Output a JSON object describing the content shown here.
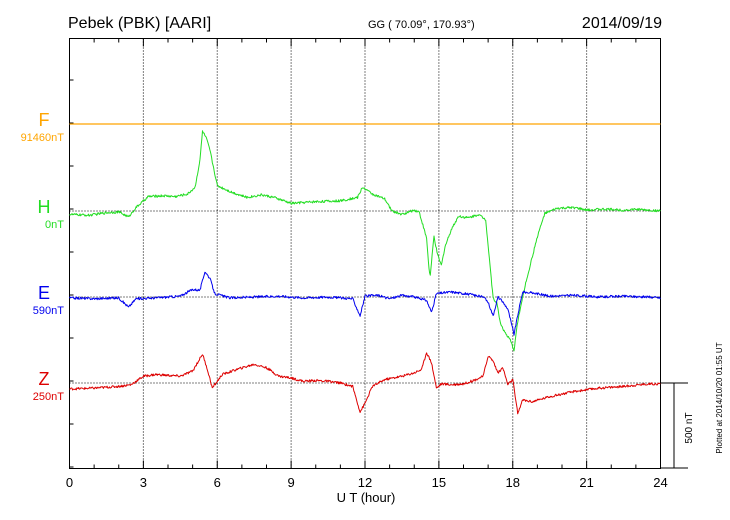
{
  "header": {
    "station": "Pebek (PBK)  [AARI]",
    "coords": "GG ( 70.09°, 170.93°)",
    "date": "2014/09/19"
  },
  "footer": {
    "plotted": "Plotted at 2014/10/20 01:55 UT",
    "scale_label": "500 nT"
  },
  "chart_data": {
    "type": "line",
    "title": "Pebek (PBK)  [AARI]  2014/09/19",
    "xlabel": "U T (hour)",
    "ylabel": "",
    "xlim": [
      0,
      24
    ],
    "xticks": [
      0,
      3,
      6,
      9,
      12,
      15,
      18,
      21,
      24
    ],
    "xtick_labels": [
      "0",
      "3",
      "6",
      "9",
      "12",
      "15",
      "18",
      "21",
      "24"
    ],
    "scale_bar_nT": 500,
    "series": [
      {
        "name": "F",
        "baseline_label": "91460nT",
        "color": "#ffa500",
        "unit": "nT",
        "points": [
          [
            0,
            0
          ],
          [
            24,
            0
          ]
        ]
      },
      {
        "name": "H",
        "baseline_label": "0nT",
        "color": "#22dd22",
        "unit": "nT",
        "points": [
          [
            0,
            -20
          ],
          [
            0.8,
            -25
          ],
          [
            1.5,
            -10
          ],
          [
            2.0,
            -5
          ],
          [
            2.4,
            -35
          ],
          [
            2.7,
            20
          ],
          [
            3.2,
            85
          ],
          [
            3.8,
            90
          ],
          [
            4.3,
            85
          ],
          [
            4.8,
            100
          ],
          [
            5.1,
            140
          ],
          [
            5.3,
            300
          ],
          [
            5.4,
            470
          ],
          [
            5.55,
            430
          ],
          [
            5.7,
            360
          ],
          [
            5.8,
            290
          ],
          [
            6.0,
            150
          ],
          [
            6.6,
            110
          ],
          [
            7.2,
            80
          ],
          [
            7.8,
            95
          ],
          [
            8.3,
            80
          ],
          [
            9.0,
            45
          ],
          [
            10.0,
            55
          ],
          [
            11.0,
            60
          ],
          [
            11.7,
            80
          ],
          [
            11.9,
            140
          ],
          [
            12.3,
            100
          ],
          [
            12.8,
            70
          ],
          [
            13.1,
            0
          ],
          [
            13.5,
            -20
          ],
          [
            14.0,
            5
          ],
          [
            14.2,
            -5
          ],
          [
            14.5,
            -160
          ],
          [
            14.6,
            -340
          ],
          [
            14.65,
            -380
          ],
          [
            14.8,
            -150
          ],
          [
            14.95,
            -260
          ],
          [
            15.1,
            -320
          ],
          [
            15.25,
            -210
          ],
          [
            15.5,
            -110
          ],
          [
            15.8,
            -30
          ],
          [
            16.2,
            -40
          ],
          [
            16.6,
            -20
          ],
          [
            16.9,
            -50
          ],
          [
            17.0,
            -200
          ],
          [
            17.2,
            -510
          ],
          [
            17.35,
            -540
          ],
          [
            17.5,
            -660
          ],
          [
            17.7,
            -720
          ],
          [
            17.9,
            -760
          ],
          [
            18.05,
            -820
          ],
          [
            18.2,
            -650
          ],
          [
            18.5,
            -440
          ],
          [
            19.0,
            -150
          ],
          [
            19.3,
            -15
          ],
          [
            19.8,
            15
          ],
          [
            20.5,
            20
          ],
          [
            21.0,
            5
          ],
          [
            21.5,
            10
          ],
          [
            22.0,
            10
          ],
          [
            22.5,
            5
          ],
          [
            23.0,
            10
          ],
          [
            23.5,
            5
          ],
          [
            24,
            0
          ]
        ]
      },
      {
        "name": "E",
        "baseline_label": "590nT",
        "color": "#0000ee",
        "unit": "nT",
        "points": [
          [
            0,
            -5
          ],
          [
            1.0,
            -10
          ],
          [
            2.0,
            -5
          ],
          [
            2.4,
            -60
          ],
          [
            2.7,
            -10
          ],
          [
            3.5,
            -5
          ],
          [
            4.5,
            5
          ],
          [
            5.0,
            45
          ],
          [
            5.3,
            40
          ],
          [
            5.5,
            150
          ],
          [
            5.7,
            110
          ],
          [
            5.9,
            20
          ],
          [
            6.5,
            -5
          ],
          [
            7.5,
            0
          ],
          [
            8.5,
            5
          ],
          [
            9.5,
            -5
          ],
          [
            10.5,
            0
          ],
          [
            11.5,
            -10
          ],
          [
            11.8,
            -110
          ],
          [
            12.0,
            5
          ],
          [
            12.5,
            10
          ],
          [
            13.0,
            -10
          ],
          [
            13.5,
            10
          ],
          [
            14.0,
            0
          ],
          [
            14.5,
            -20
          ],
          [
            14.7,
            -90
          ],
          [
            14.9,
            20
          ],
          [
            15.5,
            30
          ],
          [
            16.3,
            15
          ],
          [
            16.8,
            0
          ],
          [
            17.0,
            -30
          ],
          [
            17.2,
            -110
          ],
          [
            17.4,
            0
          ],
          [
            17.6,
            -30
          ],
          [
            17.8,
            -70
          ],
          [
            18.05,
            -220
          ],
          [
            18.2,
            -110
          ],
          [
            18.4,
            30
          ],
          [
            19.0,
            20
          ],
          [
            19.5,
            5
          ],
          [
            20.5,
            10
          ],
          [
            21.5,
            0
          ],
          [
            22.5,
            5
          ],
          [
            23.5,
            0
          ],
          [
            24,
            -5
          ]
        ]
      },
      {
        "name": "Z",
        "baseline_label": "250nT",
        "color": "#dd0000",
        "unit": "nT",
        "points": [
          [
            0,
            -35
          ],
          [
            1.0,
            -30
          ],
          [
            2.0,
            -20
          ],
          [
            2.5,
            -10
          ],
          [
            3.0,
            40
          ],
          [
            3.5,
            50
          ],
          [
            4.5,
            40
          ],
          [
            5.0,
            70
          ],
          [
            5.4,
            170
          ],
          [
            5.6,
            80
          ],
          [
            5.8,
            -30
          ],
          [
            6.2,
            50
          ],
          [
            6.8,
            80
          ],
          [
            7.5,
            110
          ],
          [
            8.0,
            90
          ],
          [
            8.5,
            40
          ],
          [
            9.0,
            30
          ],
          [
            9.5,
            10
          ],
          [
            10.0,
            15
          ],
          [
            10.5,
            10
          ],
          [
            11.0,
            0
          ],
          [
            11.5,
            -20
          ],
          [
            11.8,
            -170
          ],
          [
            12.0,
            -120
          ],
          [
            12.3,
            -20
          ],
          [
            12.8,
            20
          ],
          [
            13.5,
            40
          ],
          [
            14.0,
            60
          ],
          [
            14.3,
            80
          ],
          [
            14.5,
            180
          ],
          [
            14.7,
            120
          ],
          [
            14.9,
            -30
          ],
          [
            15.1,
            -5
          ],
          [
            15.5,
            -10
          ],
          [
            16.0,
            -5
          ],
          [
            16.5,
            20
          ],
          [
            16.8,
            40
          ],
          [
            17.0,
            160
          ],
          [
            17.2,
            130
          ],
          [
            17.4,
            60
          ],
          [
            17.6,
            90
          ],
          [
            17.8,
            -10
          ],
          [
            18.0,
            20
          ],
          [
            18.2,
            -180
          ],
          [
            18.4,
            -100
          ],
          [
            18.8,
            -110
          ],
          [
            19.5,
            -80
          ],
          [
            20.5,
            -50
          ],
          [
            21.5,
            -30
          ],
          [
            22.5,
            -20
          ],
          [
            23.5,
            -5
          ],
          [
            24,
            -5
          ]
        ]
      }
    ]
  }
}
